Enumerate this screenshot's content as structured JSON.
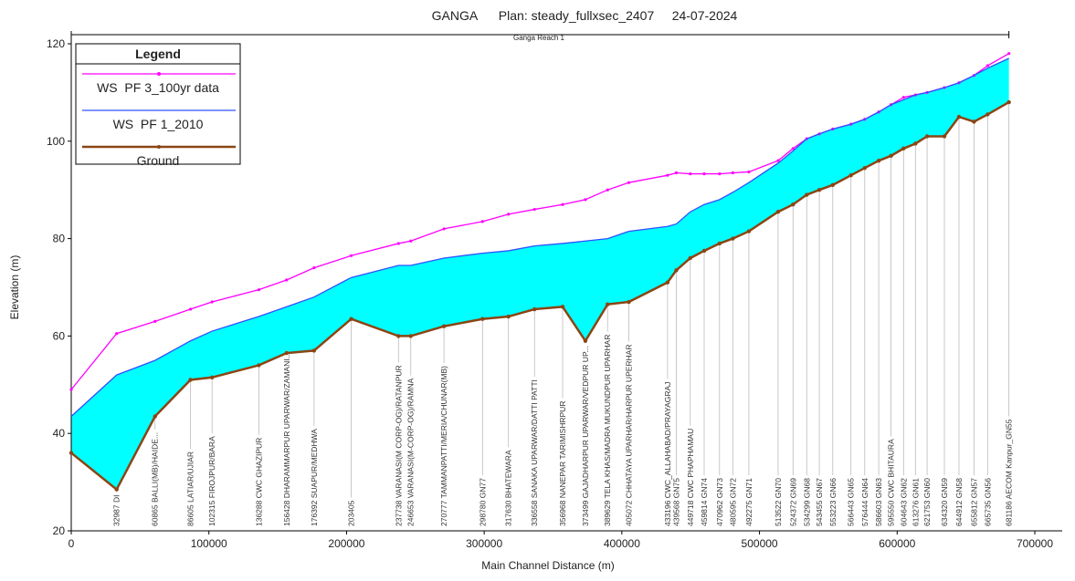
{
  "chart_data": {
    "type": "line",
    "title": "GANGA      Plan: steady_fullxsec_2407     24-07-2024",
    "reach_label": "Ganga Reach 1",
    "xlabel": "Main Channel Distance (m)",
    "ylabel": "Elevation (m)",
    "legend_title": "Legend",
    "legend": "top-left",
    "xlim": [
      0,
      700000
    ],
    "xticks": [
      0,
      100000,
      200000,
      300000,
      400000,
      500000,
      600000,
      700000
    ],
    "ylim": [
      20,
      120
    ],
    "yticks": [
      20,
      40,
      60,
      80,
      100,
      120
    ],
    "fill_color": "#00ffff",
    "x": [
      0,
      32987,
      60865,
      86605,
      102315,
      136288,
      156428,
      176392,
      203405,
      237738,
      246653,
      270777,
      298780,
      317630,
      336558,
      356968,
      373499,
      389629,
      405072,
      433196,
      439568,
      449718,
      459814,
      470962,
      480595,
      492275,
      513522,
      524372,
      534299,
      543455,
      553223,
      566443,
      576444,
      586603,
      595550,
      604643,
      613276,
      621753,
      634320,
      644912,
      655812,
      665735,
      681186
    ],
    "station_labels": [
      null,
      "32987 DI",
      "60865 BALLI(MB)/HAIDE...",
      "86605 LATIAR/UJIAR",
      "102315 FIROJPUR/BARA",
      "136288 CWC GHAZIPUR",
      "156428 DHARAMMARPUR UPARWAR/ZAMANI...",
      "176392 SUAPUR/MEDHWA",
      "203405",
      "237738 VARANASI(M CORP-OG)/RATANPUR",
      "246653 VARANASI(M-CORP-OG)/RAMNA",
      "270777 TAMMANPATTI/MERIA/CHUNAR(MB)",
      "298780 GN77",
      "317630 BHATEWARA",
      "336558 SANAKA UPARWAR/DATTI PATTI",
      "356968 NANEPAR TARIMISHRPUR",
      "373499 GAJADHARPUR UPARWAR/VEDPUR UP...",
      "389629 TELA KHAS/MADRA MUKUNDPUR UPARHAR",
      "405072 CHHATAYA UPARHAR/HARPUR UPERHAR",
      "433196 CWC_ALLAHABAD/PRAYAGRAJ",
      "439568 GN75",
      "449718 CWC PHAPHAMAU",
      "459814 GN74",
      "470962 GN73",
      "480595 GN72",
      "492275 GN71",
      "513522 GN70",
      "524372 GN69",
      "534299 GN68",
      "543455 GN67",
      "553223 GN66",
      "566443 GN65",
      "576444 GN64",
      "586603 GN63",
      "595550 CWC BHITAURA",
      "604643 GN62",
      "613276 GN61",
      "621753 GN60",
      "634320 GN59",
      "644912 GN58",
      "655812 GN57",
      "665735 GN56",
      "681186 AECOM Kanpur_GN55"
    ],
    "series": [
      {
        "name": "WS  PF 3_100yr data",
        "color": "#ff00ff",
        "values": [
          49,
          60.5,
          63,
          65.5,
          67,
          69.5,
          71.5,
          74,
          76.5,
          79,
          79.5,
          82,
          83.5,
          85,
          86,
          87,
          88,
          90,
          91.5,
          93,
          93.5,
          93.3,
          93.3,
          93.3,
          93.5,
          93.7,
          96,
          98.5,
          100.5,
          101.5,
          102.5,
          103.5,
          104.5,
          106,
          107.5,
          109,
          109.5,
          110,
          111,
          112,
          113.5,
          115.5,
          118
        ]
      },
      {
        "name": "WS  PF 1_2010",
        "color": "#3050ff",
        "values": [
          43.5,
          52,
          55,
          59,
          61,
          64,
          66,
          68,
          72,
          74.5,
          74.5,
          76,
          77,
          77.5,
          78.5,
          79,
          79.5,
          80,
          81.5,
          82.5,
          83,
          85.5,
          87,
          88,
          89.5,
          91.5,
          95.5,
          98,
          100.5,
          101.5,
          102.5,
          103.5,
          104.5,
          106,
          107.5,
          108.5,
          109.5,
          110,
          111,
          112,
          113.5,
          115,
          117
        ]
      },
      {
        "name": "Ground",
        "color": "#8b4513",
        "values": [
          36,
          28.5,
          43.5,
          51,
          51.5,
          54,
          56.5,
          57,
          63.5,
          60,
          60,
          62,
          63.5,
          64,
          65.5,
          66,
          59,
          66.5,
          67,
          71,
          73.5,
          76,
          77.5,
          79,
          80,
          81.5,
          85.5,
          87,
          89,
          90,
          91,
          93,
          94.5,
          96,
          97,
          98.5,
          99.5,
          101,
          101,
          105,
          104,
          105.5,
          108
        ]
      }
    ]
  }
}
